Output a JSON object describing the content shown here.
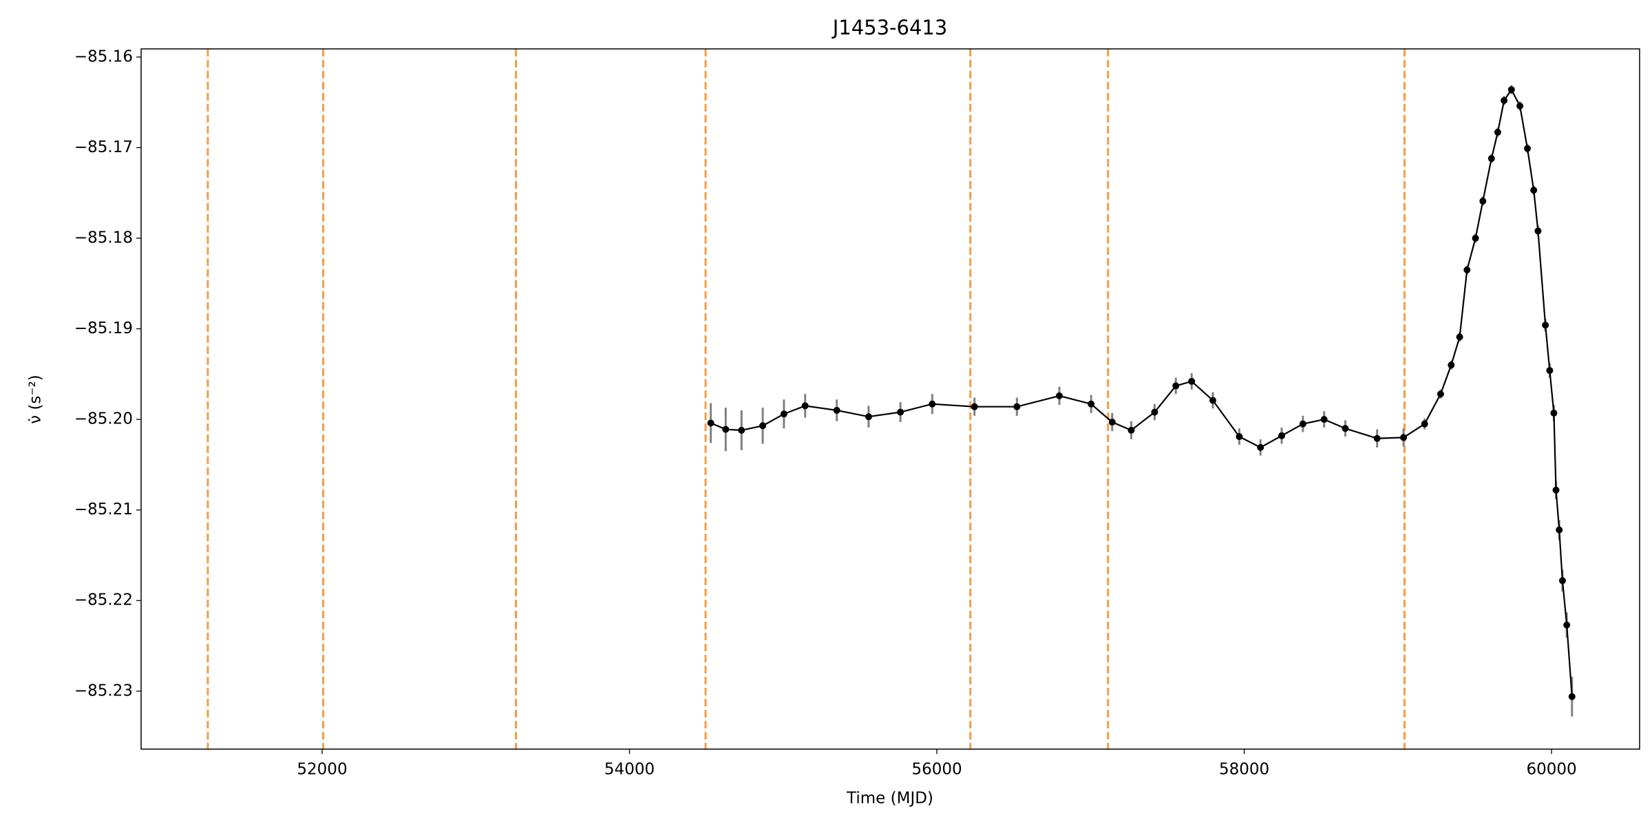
{
  "chart_data": {
    "type": "line",
    "title": "J1453-6413",
    "x_label": "Time (MJD)",
    "y_label": "ν̇ (s⁻²)",
    "xlim": [
      50822,
      60573
    ],
    "ylim": [
      -85.2364,
      -85.1591
    ],
    "xticks": [
      52000,
      54000,
      56000,
      58000,
      60000
    ],
    "yticks": [
      {
        "value": -85.16,
        "label": "−85.16"
      },
      {
        "value": -85.17,
        "label": "−85.17"
      },
      {
        "value": -85.18,
        "label": "−85.18"
      },
      {
        "value": -85.19,
        "label": "−85.19"
      },
      {
        "value": -85.2,
        "label": "−85.20"
      },
      {
        "value": -85.21,
        "label": "−85.21"
      },
      {
        "value": -85.22,
        "label": "−85.22"
      },
      {
        "value": -85.23,
        "label": "−85.23"
      }
    ],
    "x": [
      54529,
      54626,
      54729,
      54867,
      55005,
      55143,
      55349,
      55556,
      55763,
      55970,
      56245,
      56521,
      56797,
      57004,
      57141,
      57265,
      57417,
      57555,
      57658,
      57796,
      57968,
      58106,
      58244,
      58382,
      58520,
      58658,
      58865,
      59037,
      59174,
      59278,
      59347,
      59402,
      59450,
      59505,
      59553,
      59609,
      59650,
      59691,
      59739,
      59794,
      59843,
      59884,
      59912,
      59960,
      59988,
      60015,
      60029,
      60050,
      60071,
      60099,
      60133
    ],
    "values": [
      -85.2004,
      -85.2011,
      -85.2012,
      -85.2007,
      -85.1994,
      -85.1985,
      -85.199,
      -85.1997,
      -85.1992,
      -85.1983,
      -85.1986,
      -85.1986,
      -85.1974,
      -85.1983,
      -85.2003,
      -85.2012,
      -85.1992,
      -85.1963,
      -85.1958,
      -85.1979,
      -85.2019,
      -85.2031,
      -85.2018,
      -85.2005,
      -85.2,
      -85.201,
      -85.2021,
      -85.202,
      -85.2005,
      -85.1972,
      -85.194,
      -85.1909,
      -85.1835,
      -85.18,
      -85.1759,
      -85.1712,
      -85.1683,
      -85.1648,
      -85.1636,
      -85.1654,
      -85.1701,
      -85.1747,
      -85.1792,
      -85.1896,
      -85.1946,
      -85.1993,
      -85.2078,
      -85.2122,
      -85.2178,
      -85.2227,
      -85.2306
    ],
    "errors": [
      0.0022,
      0.0024,
      0.0022,
      0.002,
      0.0016,
      0.0013,
      0.0012,
      0.0012,
      0.0011,
      0.0011,
      0.001,
      0.001,
      0.001,
      0.001,
      0.001,
      0.001,
      0.0009,
      0.0009,
      0.0009,
      0.0009,
      0.0009,
      0.0009,
      0.0009,
      0.0009,
      0.0009,
      0.0009,
      0.001,
      0.001,
      0.0006,
      0.0005,
      0.0005,
      0.0005,
      0.0005,
      0.0005,
      0.0005,
      0.0005,
      0.0005,
      0.0005,
      0.0005,
      0.0005,
      0.0005,
      0.0005,
      0.0006,
      0.0007,
      0.0008,
      0.0009,
      0.001,
      0.0011,
      0.0012,
      0.0014,
      0.0022
    ],
    "color": "#000000",
    "error_color": "#808080",
    "vlines": {
      "x": [
        51256,
        52007,
        53261,
        54495,
        56218,
        57114,
        59043
      ],
      "color": "#f59c45",
      "style": "dashed"
    }
  }
}
